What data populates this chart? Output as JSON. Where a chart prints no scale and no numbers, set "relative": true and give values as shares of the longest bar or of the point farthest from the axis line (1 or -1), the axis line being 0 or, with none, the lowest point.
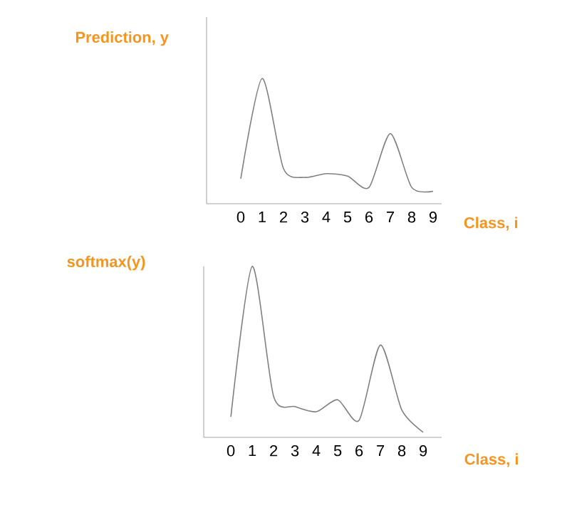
{
  "chart_data": [
    {
      "type": "line",
      "ylabel": "Prediction, y",
      "xlabel": "Class, i",
      "categories": [
        "0",
        "1",
        "2",
        "3",
        "4",
        "5",
        "6",
        "7",
        "8",
        "9"
      ],
      "relative": true,
      "series": [
        {
          "color": "#808080",
          "values": [
            0.2,
            1,
            0.28,
            0.21,
            0.24,
            0.22,
            0.13,
            0.56,
            0.13,
            0.1
          ]
        }
      ]
    },
    {
      "type": "line",
      "ylabel": "softmax(y)",
      "xlabel": "Class, i",
      "categories": [
        "0",
        "1",
        "2",
        "3",
        "4",
        "5",
        "6",
        "7",
        "8",
        "9"
      ],
      "relative": true,
      "series": [
        {
          "color": "#808080",
          "values": [
            0.12,
            1,
            0.24,
            0.18,
            0.15,
            0.22,
            0.1,
            0.54,
            0.16,
            0.03
          ]
        }
      ]
    }
  ]
}
